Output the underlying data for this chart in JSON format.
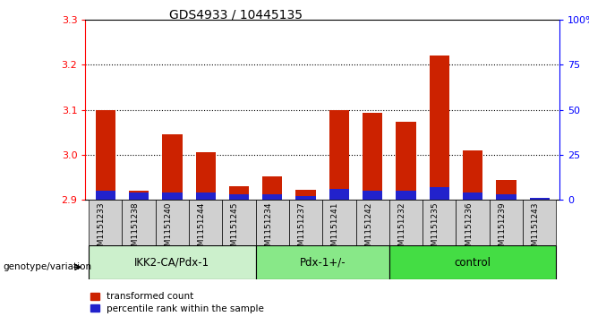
{
  "title": "GDS4933 / 10445135",
  "samples": [
    "GSM1151233",
    "GSM1151238",
    "GSM1151240",
    "GSM1151244",
    "GSM1151245",
    "GSM1151234",
    "GSM1151237",
    "GSM1151241",
    "GSM1151242",
    "GSM1151232",
    "GSM1151235",
    "GSM1151236",
    "GSM1151239",
    "GSM1151243"
  ],
  "red_values": [
    3.1,
    2.92,
    3.045,
    3.005,
    2.93,
    2.952,
    2.922,
    3.1,
    3.093,
    3.073,
    3.22,
    3.01,
    2.945,
    2.902
  ],
  "blue_pct": [
    5,
    4,
    4,
    4,
    3,
    3,
    2,
    6,
    5,
    5,
    7,
    4,
    3,
    1
  ],
  "groups": [
    {
      "label": "IKK2-CA/Pdx-1",
      "start": 0,
      "end": 5,
      "color": "#ccf0cc"
    },
    {
      "label": "Pdx-1+/-",
      "start": 5,
      "end": 9,
      "color": "#88e888"
    },
    {
      "label": "control",
      "start": 9,
      "end": 14,
      "color": "#44dd44"
    }
  ],
  "ymin": 2.9,
  "ymax": 3.3,
  "yticks": [
    2.9,
    3.0,
    3.1,
    3.2,
    3.3
  ],
  "right_yticks": [
    0,
    25,
    50,
    75,
    100
  ],
  "bar_width": 0.6,
  "red_color": "#cc2200",
  "blue_color": "#2222cc",
  "sample_bg_color": "#d0d0d0",
  "plot_bg_color": "#ffffff",
  "legend_red": "transformed count",
  "legend_blue": "percentile rank within the sample",
  "group_label_prefix": "genotype/variation"
}
